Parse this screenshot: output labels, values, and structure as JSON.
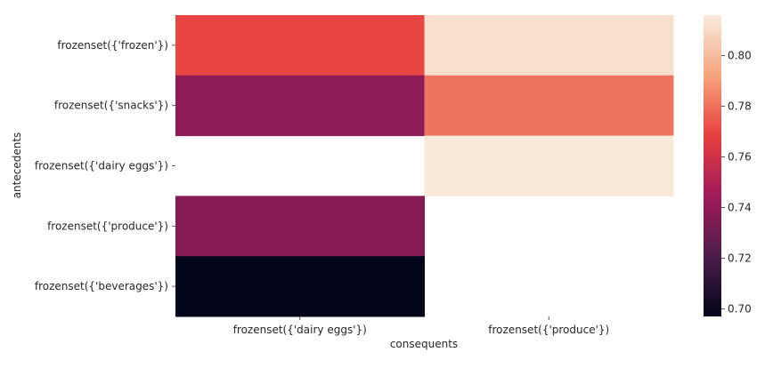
{
  "chart_data": {
    "type": "heatmap",
    "title": "",
    "xlabel": "consequents",
    "ylabel": "antecedents",
    "x_categories": [
      "frozenset({'dairy eggs'})",
      "frozenset({'produce'})"
    ],
    "y_categories": [
      "frozenset({'frozen'})",
      "frozenset({'snacks'})",
      "frozenset({'dairy eggs'})",
      "frozenset({'produce'})",
      "frozenset({'beverages'})"
    ],
    "values": [
      [
        0.77,
        0.812
      ],
      [
        0.739,
        0.781
      ],
      [
        null,
        0.815
      ],
      [
        0.737,
        null
      ],
      [
        0.697,
        null
      ]
    ],
    "colorbar": {
      "min": 0.697,
      "max": 0.816,
      "ticks": [
        0.7,
        0.72,
        0.74,
        0.76,
        0.78,
        0.8
      ],
      "tick_labels": [
        "0.70",
        "0.72",
        "0.74",
        "0.76",
        "0.78",
        "0.80"
      ],
      "colormap": "rocket"
    }
  }
}
